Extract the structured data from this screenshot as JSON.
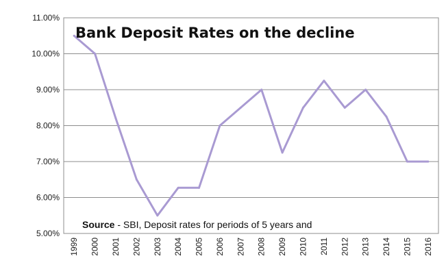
{
  "chart_data": {
    "type": "line",
    "title": "Bank Deposit Rates on the decline",
    "xlabel": "",
    "ylabel": "",
    "x": [
      "1999",
      "2000",
      "2001",
      "2002",
      "2003",
      "2004",
      "2005",
      "2006",
      "2007",
      "2008",
      "2009",
      "2010",
      "2011",
      "2012",
      "2013",
      "2014",
      "2015",
      "2016"
    ],
    "series": [
      {
        "values": [
          10.5,
          10.0,
          8.2,
          6.5,
          5.5,
          6.27,
          6.27,
          8.0,
          8.5,
          9.0,
          7.25,
          8.5,
          9.25,
          8.5,
          9.0,
          8.25,
          7.0,
          7.0
        ]
      }
    ],
    "ylim": [
      5.0,
      11.0
    ],
    "yticks": [
      5.0,
      6.0,
      7.0,
      8.0,
      9.0,
      10.0,
      11.0
    ],
    "ytick_labels": [
      "5.00%",
      "6.00%",
      "7.00%",
      "8.00%",
      "9.00%",
      "10.00%",
      "11.00%"
    ],
    "grid": true,
    "legend": "none",
    "annotation": {
      "label_bold": "Source",
      "text": " - SBI, Deposit rates for periods of 5 years and"
    },
    "colors": {
      "line": "#a99ad2",
      "grid": "#8c8c8c"
    }
  }
}
